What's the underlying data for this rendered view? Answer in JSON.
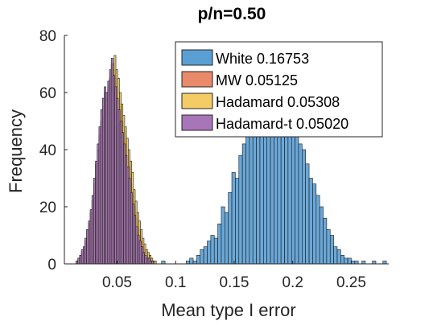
{
  "chart_data": {
    "type": "histogram",
    "title": "p/n=0.50",
    "xlabel": "Mean type I error",
    "ylabel": "Frequency",
    "xlim": [
      0.005,
      0.282
    ],
    "ylim": [
      0,
      80
    ],
    "xticks": [
      0.05,
      0.1,
      0.15,
      0.2,
      0.25
    ],
    "xtick_labels": [
      "0.05",
      "0.1",
      "0.15",
      "0.2",
      "0.25"
    ],
    "yticks": [
      0,
      20,
      40,
      60,
      80
    ],
    "ytick_labels": [
      "0",
      "20",
      "40",
      "60",
      "80"
    ],
    "legend_position": "top-right",
    "series": [
      {
        "name": "White 0.16753",
        "color": "#5a9fd4",
        "bin_start": 0.088,
        "bin_width": 0.003,
        "counts": [
          1,
          0,
          0,
          0,
          0,
          0,
          0,
          1,
          2,
          1,
          3,
          5,
          6,
          8,
          10,
          9,
          14,
          20,
          18,
          25,
          32,
          30,
          38,
          42,
          45,
          50,
          48,
          55,
          62,
          58,
          60,
          64,
          57,
          55,
          60,
          52,
          50,
          48,
          45,
          42,
          40,
          35,
          30,
          28,
          24,
          20,
          16,
          12,
          10,
          6,
          5,
          3,
          2,
          2,
          1,
          1,
          0,
          1,
          0,
          0,
          1,
          0,
          0,
          1
        ]
      },
      {
        "name": "MW 0.05125",
        "color": "#e8896a",
        "bin_start": 0.015,
        "bin_width": 0.0015,
        "counts": [
          1,
          2,
          3,
          4,
          5,
          8,
          12,
          14,
          18,
          22,
          28,
          35,
          40,
          45,
          50,
          55,
          60,
          58,
          62,
          65,
          70,
          68,
          65,
          62,
          58,
          55,
          50,
          46,
          42,
          38,
          34,
          28,
          24,
          20,
          16,
          12,
          10,
          8,
          6,
          5,
          4,
          3,
          2,
          1,
          1
        ]
      },
      {
        "name": "Hadamard 0.05308",
        "color": "#f4cc66",
        "bin_start": 0.016,
        "bin_width": 0.0015,
        "counts": [
          1,
          1,
          2,
          3,
          5,
          6,
          9,
          12,
          15,
          20,
          25,
          30,
          36,
          42,
          48,
          52,
          57,
          60,
          63,
          66,
          70,
          73,
          68,
          65,
          60,
          56,
          52,
          48,
          44,
          40,
          36,
          32,
          26,
          22,
          18,
          15,
          12,
          9,
          7,
          5,
          4,
          3,
          2,
          1,
          1
        ]
      },
      {
        "name": "Hadamard-t 0.05020",
        "color": "#a776b8",
        "bin_start": 0.015,
        "bin_width": 0.0015,
        "counts": [
          1,
          2,
          3,
          5,
          6,
          9,
          12,
          15,
          19,
          24,
          30,
          36,
          42,
          48,
          54,
          58,
          62,
          60,
          64,
          68,
          72,
          66,
          62,
          58,
          54,
          50,
          46,
          42,
          38,
          34,
          30,
          25,
          21,
          17,
          13,
          10,
          8,
          6,
          4,
          3,
          2,
          2,
          1,
          1,
          0
        ]
      }
    ]
  }
}
